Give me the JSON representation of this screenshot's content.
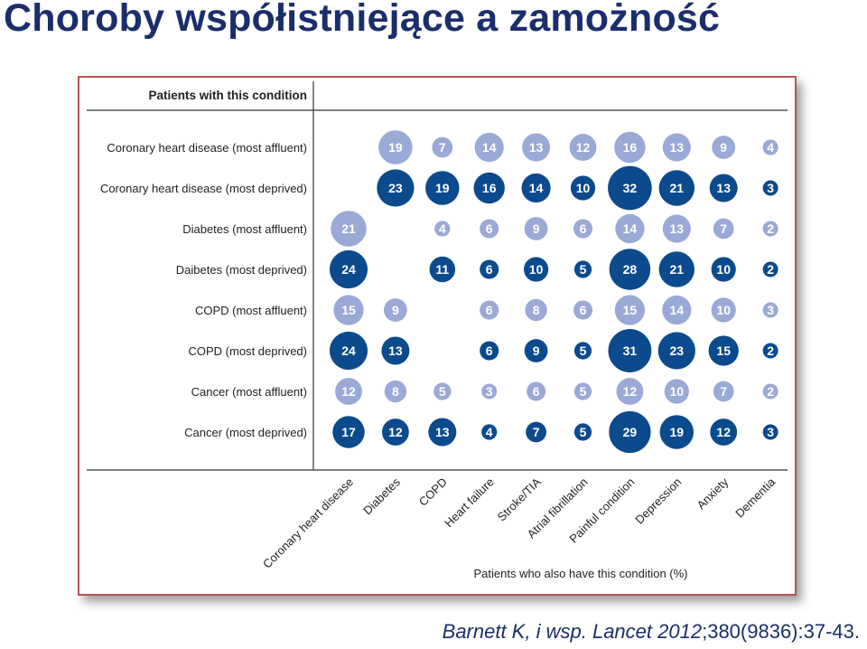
{
  "slide": {
    "title": "Choroby współistniejące a zamożność",
    "citation_authors": "Barnett K, i wsp.",
    "citation_journal": "Lancet",
    "citation_year": "2012",
    "citation_ref": ";380(9836):37-43."
  },
  "chart_data": {
    "type": "bubble-matrix",
    "row_header": "Patients with this condition",
    "xlabel": "Patients who also have this condition (%)",
    "rows": [
      "Coronary heart disease (most affluent)",
      "Coronary heart disease (most deprived)",
      "Diabetes (most affluent)",
      "Daibetes (most deprived)",
      "COPD (most affluent)",
      "COPD (most deprived)",
      "Cancer (most affluent)",
      "Cancer (most deprived)"
    ],
    "row_group": [
      "affluent",
      "deprived",
      "affluent",
      "deprived",
      "affluent",
      "deprived",
      "affluent",
      "deprived"
    ],
    "columns": [
      "Coronary heart disease",
      "Diabetes",
      "COPD",
      "Heart failure",
      "Stroke/TIA",
      "Atrial fibrillation",
      "Painful condition",
      "Depression",
      "Anxiety",
      "Dementia"
    ],
    "values": [
      [
        null,
        19,
        7,
        14,
        13,
        12,
        16,
        13,
        9,
        4
      ],
      [
        null,
        23,
        19,
        16,
        14,
        10,
        32,
        21,
        13,
        3
      ],
      [
        21,
        null,
        4,
        6,
        9,
        6,
        14,
        13,
        7,
        2
      ],
      [
        24,
        null,
        11,
        6,
        10,
        5,
        28,
        21,
        10,
        2
      ],
      [
        15,
        9,
        null,
        6,
        8,
        6,
        15,
        14,
        10,
        3
      ],
      [
        24,
        13,
        null,
        6,
        9,
        5,
        31,
        23,
        15,
        2
      ],
      [
        12,
        8,
        5,
        3,
        6,
        5,
        12,
        10,
        7,
        2
      ],
      [
        17,
        12,
        13,
        4,
        7,
        5,
        29,
        19,
        12,
        3
      ]
    ],
    "colors": {
      "affluent": "#9aa9d6",
      "deprived": "#0b4a8d",
      "label_text": "#ffffff",
      "axis_text": "#222222"
    }
  }
}
